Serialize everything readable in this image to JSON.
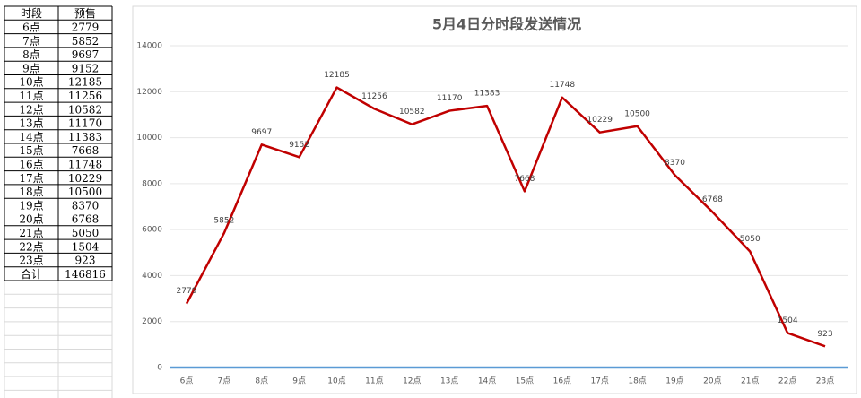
{
  "table": {
    "header": [
      "时段",
      "预售"
    ],
    "rows": [
      [
        "6点",
        2779
      ],
      [
        "7点",
        5852
      ],
      [
        "8点",
        9697
      ],
      [
        "9点",
        9152
      ],
      [
        "10点",
        12185
      ],
      [
        "11点",
        11256
      ],
      [
        "12点",
        10582
      ],
      [
        "13点",
        11170
      ],
      [
        "14点",
        11383
      ],
      [
        "15点",
        7668
      ],
      [
        "16点",
        11748
      ],
      [
        "17点",
        10229
      ],
      [
        "18点",
        10500
      ],
      [
        "19点",
        8370
      ],
      [
        "20点",
        6768
      ],
      [
        "21点",
        5050
      ],
      [
        "22点",
        1504
      ],
      [
        "23点",
        923
      ]
    ],
    "total": [
      "合计",
      146816
    ]
  },
  "chart_data": {
    "type": "line",
    "title": "5月4日分时段发送情况",
    "categories": [
      "6点",
      "7点",
      "8点",
      "9点",
      "10点",
      "11点",
      "12点",
      "13点",
      "14点",
      "15点",
      "16点",
      "17点",
      "18点",
      "19点",
      "20点",
      "21点",
      "22点",
      "23点"
    ],
    "values": [
      2779,
      5852,
      9697,
      9152,
      12185,
      11256,
      10582,
      11170,
      11383,
      7668,
      11748,
      10229,
      10500,
      8370,
      6768,
      5050,
      1504,
      923
    ],
    "color": "#c00000",
    "ylim": [
      0,
      14000
    ],
    "yticks": [
      0,
      2000,
      4000,
      6000,
      8000,
      10000,
      12000,
      14000
    ],
    "grid": true
  }
}
